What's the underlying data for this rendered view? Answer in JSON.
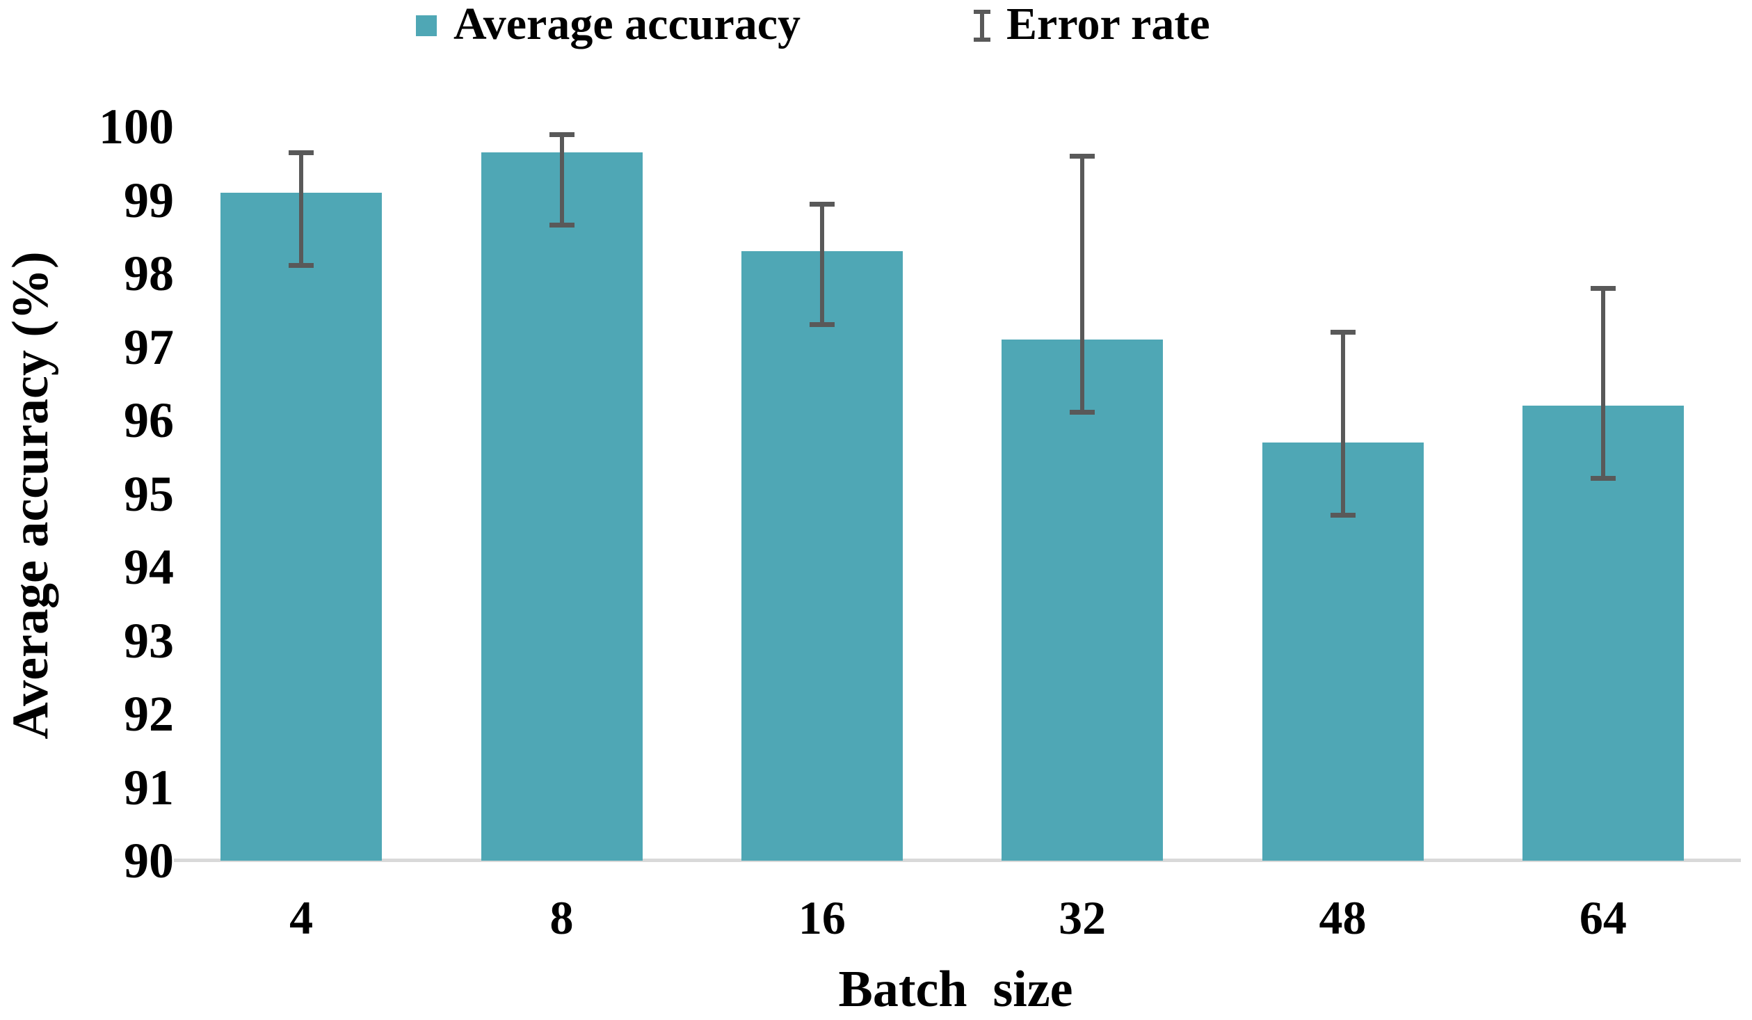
{
  "chart_data": {
    "type": "bar",
    "title": "",
    "categories": [
      "4",
      "8",
      "16",
      "32",
      "48",
      "64"
    ],
    "series": [
      {
        "name": "Average accuracy",
        "values": [
          99.1,
          99.65,
          98.3,
          97.1,
          95.7,
          96.2
        ]
      }
    ],
    "error_bars": {
      "upper": [
        99.65,
        99.9,
        98.95,
        99.6,
        97.2,
        97.8
      ],
      "lower": [
        98.1,
        98.65,
        97.3,
        96.1,
        94.7,
        95.2
      ]
    },
    "xlabel": "Batch  size",
    "ylabel": "Average accuracy (%)",
    "ylim": [
      90,
      100
    ],
    "yticks": [
      "100",
      "99",
      "98",
      "97",
      "96",
      "95",
      "94",
      "93",
      "92",
      "91",
      "90"
    ],
    "grid": false,
    "legend_position": "top",
    "legend": [
      {
        "label": "Average accuracy",
        "marker": "square"
      },
      {
        "label": "Error rate",
        "marker": "error-bar"
      }
    ],
    "colors": {
      "bar": "#4fa7b5",
      "error_bar": "#595959",
      "axis_line": "#d9d9d9",
      "text": "#000000"
    }
  }
}
